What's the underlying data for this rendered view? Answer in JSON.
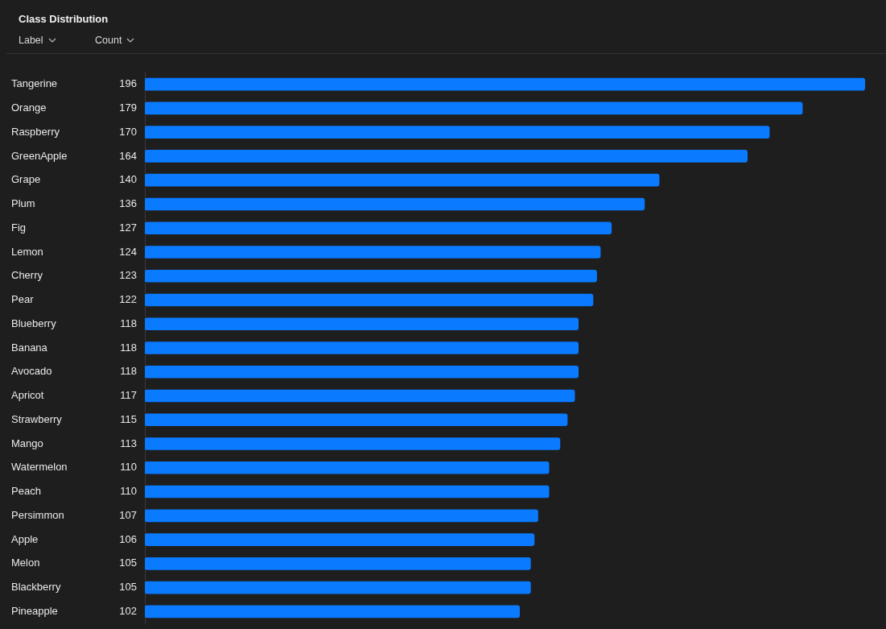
{
  "chart_data": {
    "type": "bar",
    "orientation": "horizontal",
    "title": "Class Distribution",
    "ylabel": "Label",
    "xlabel": "Count",
    "categories": [
      "Tangerine",
      "Orange",
      "Raspberry",
      "GreenApple",
      "Grape",
      "Plum",
      "Fig",
      "Lemon",
      "Cherry",
      "Pear",
      "Blueberry",
      "Banana",
      "Avocado",
      "Apricot",
      "Strawberry",
      "Mango",
      "Watermelon",
      "Peach",
      "Persimmon",
      "Apple",
      "Melon",
      "Blackberry",
      "Pineapple"
    ],
    "values": [
      196,
      179,
      170,
      164,
      140,
      136,
      127,
      124,
      123,
      122,
      118,
      118,
      118,
      117,
      115,
      113,
      110,
      110,
      107,
      106,
      105,
      105,
      102
    ],
    "color": "#0a7aff",
    "data_labels": true,
    "legend": false
  }
}
